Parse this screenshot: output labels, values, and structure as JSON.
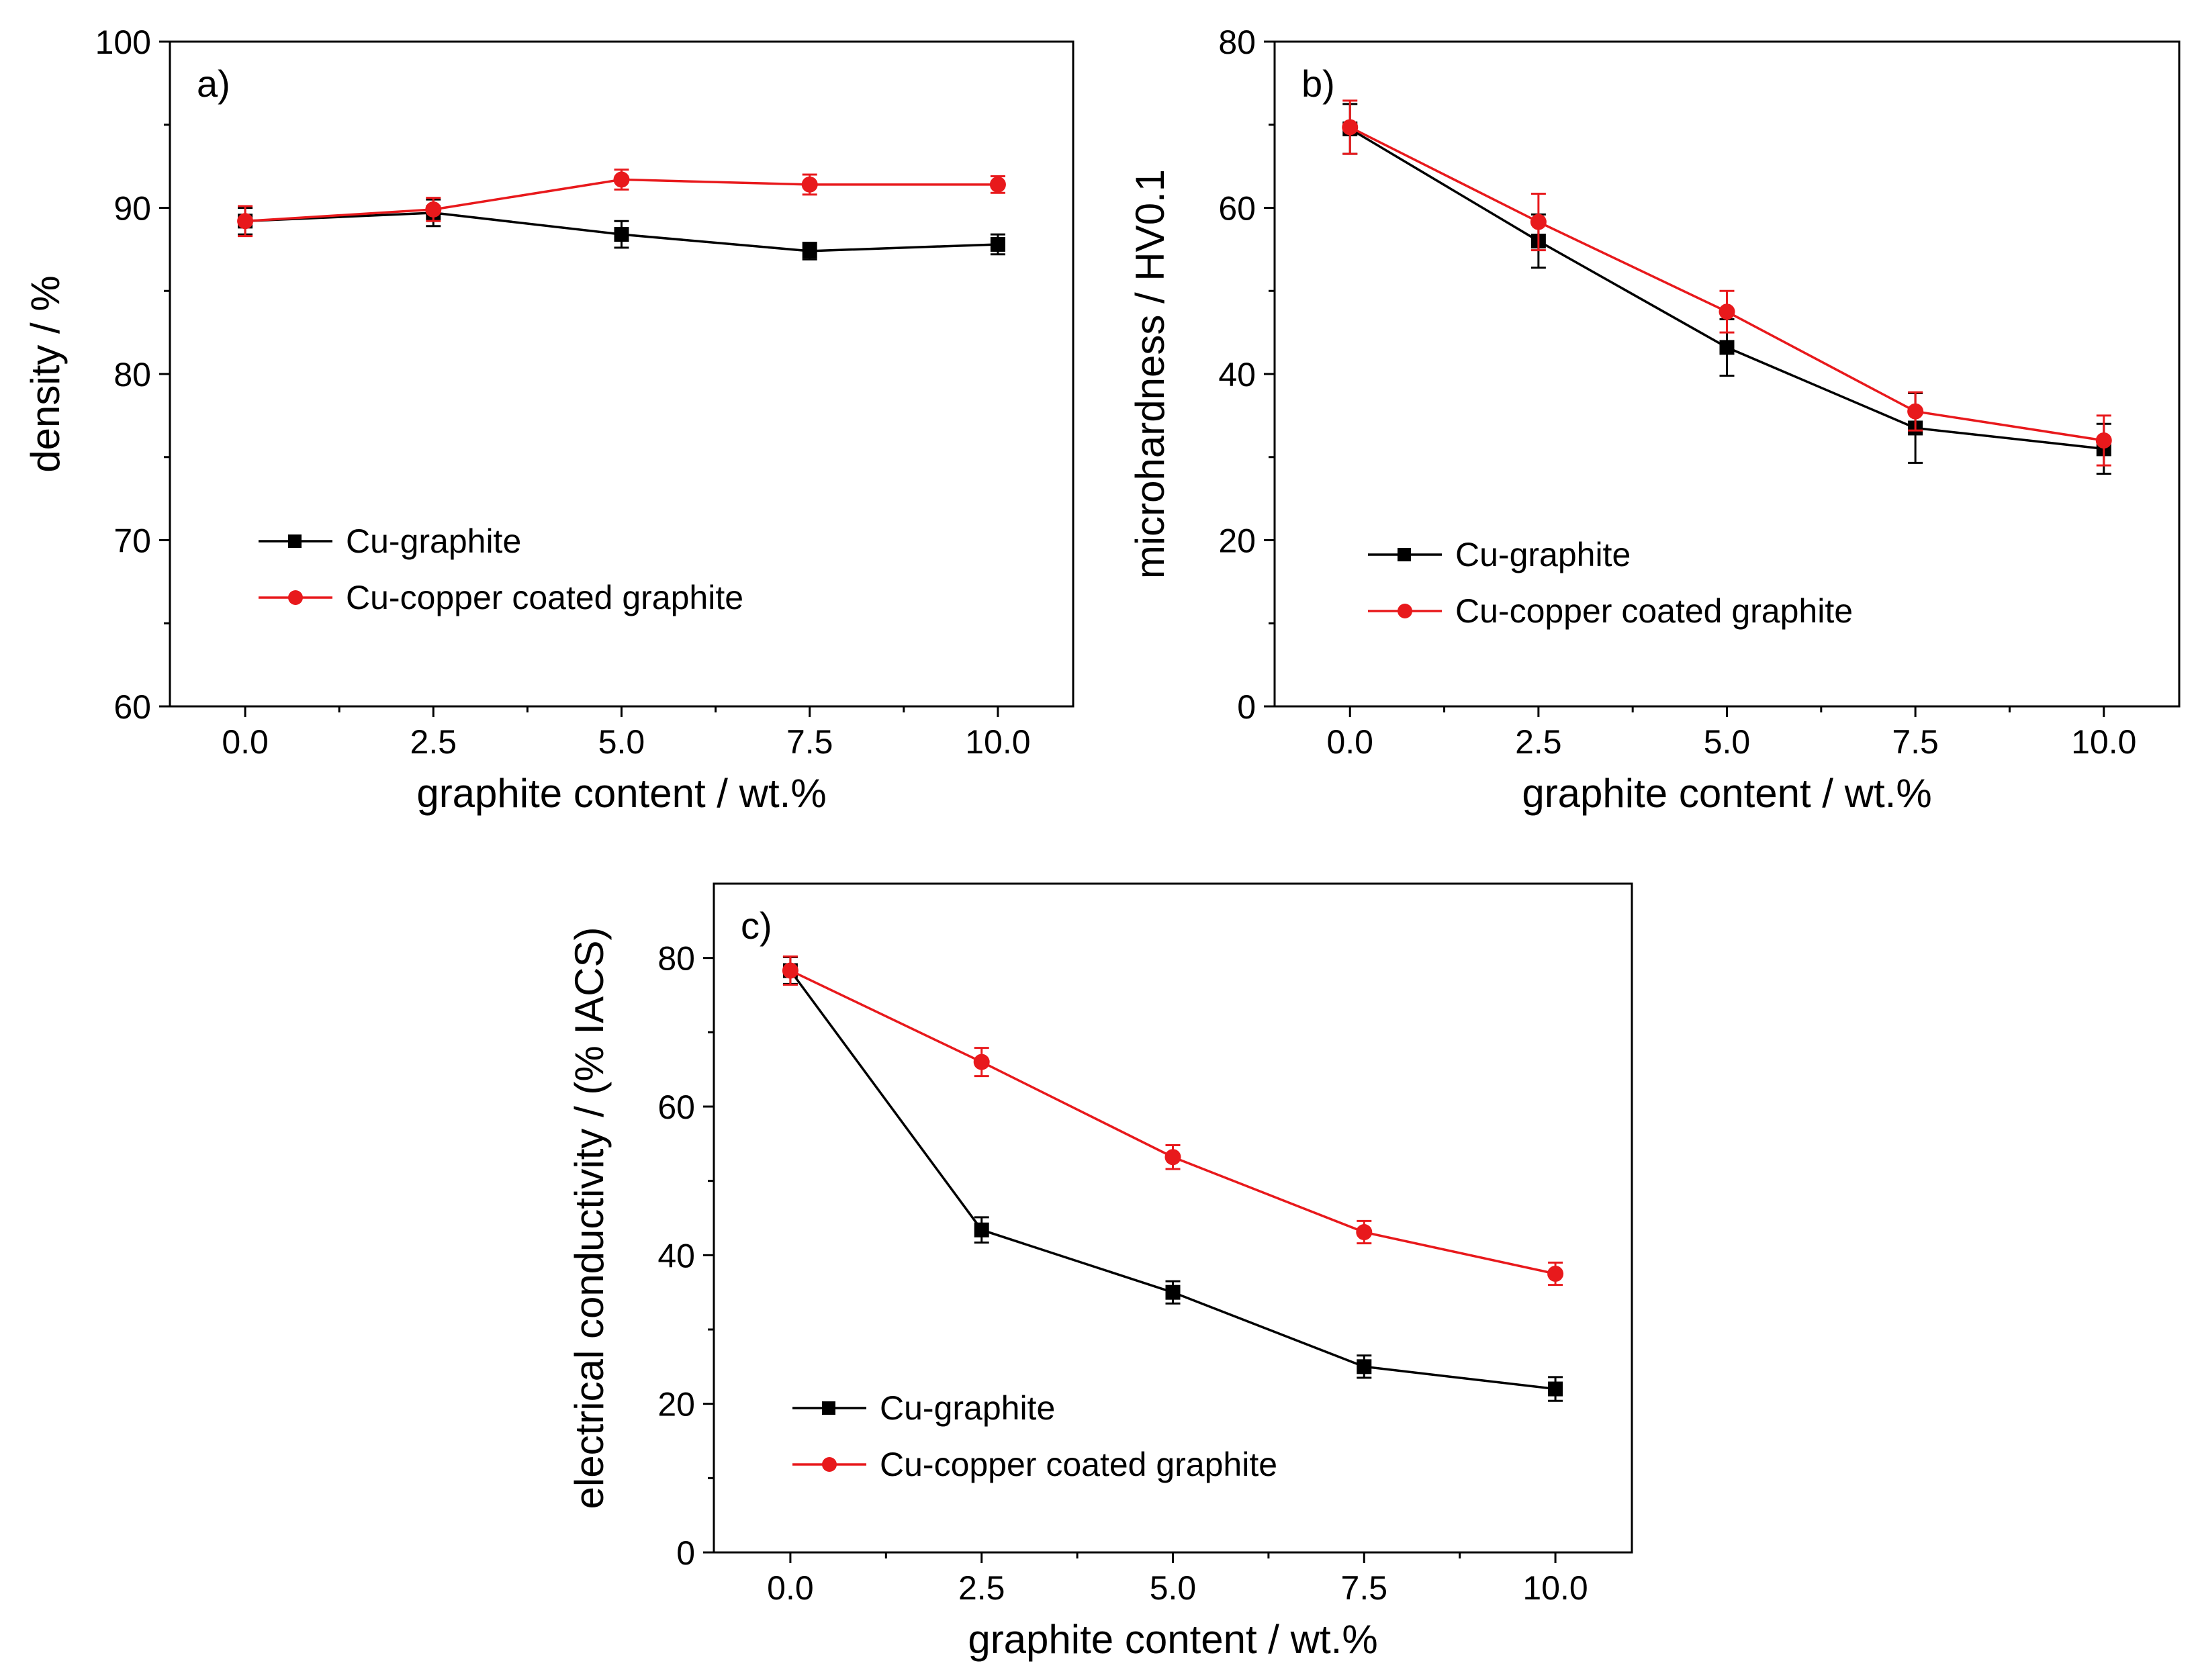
{
  "colors": {
    "cu_graphite": "#000000",
    "cu_coated": "#e8191c"
  },
  "chart_data": [
    {
      "type": "line",
      "panel_label": "a)",
      "xlabel": "graphite content / wt.%",
      "ylabel": "density / %",
      "xlim": [
        -1,
        11
      ],
      "ylim": [
        60,
        100
      ],
      "x_ticks": [
        "0.0",
        "2.5",
        "5.0",
        "7.5",
        "10.0"
      ],
      "x_tick_values": [
        0,
        2.5,
        5,
        7.5,
        10
      ],
      "y_ticks": [
        "60",
        "70",
        "80",
        "90",
        "100"
      ],
      "y_tick_values": [
        60,
        70,
        80,
        90,
        100
      ],
      "legend_position": "lower-left",
      "series": [
        {
          "name": "Cu-graphite",
          "color": "#000000",
          "marker": "square",
          "x": [
            0,
            2.5,
            5,
            7.5,
            10
          ],
          "y": [
            89.2,
            89.7,
            88.4,
            87.4,
            87.8
          ],
          "err": [
            0.8,
            0.8,
            0.8,
            0.5,
            0.6
          ]
        },
        {
          "name": "Cu-copper coated graphite",
          "color": "#e8191c",
          "marker": "circle",
          "x": [
            0,
            2.5,
            5,
            7.5,
            10
          ],
          "y": [
            89.2,
            89.9,
            91.7,
            91.4,
            91.4
          ],
          "err": [
            0.9,
            0.7,
            0.6,
            0.6,
            0.5
          ]
        }
      ]
    },
    {
      "type": "line",
      "panel_label": "b)",
      "xlabel": "graphite content / wt.%",
      "ylabel": "microhardness / HV0.1",
      "xlim": [
        -1,
        11
      ],
      "ylim": [
        0,
        80
      ],
      "x_ticks": [
        "0.0",
        "2.5",
        "5.0",
        "7.5",
        "10.0"
      ],
      "x_tick_values": [
        0,
        2.5,
        5,
        7.5,
        10
      ],
      "y_ticks": [
        "0",
        "20",
        "40",
        "60",
        "80"
      ],
      "y_tick_values": [
        0,
        20,
        40,
        60,
        80
      ],
      "legend_position": "lower-left",
      "series": [
        {
          "name": "Cu-graphite",
          "color": "#000000",
          "marker": "square",
          "x": [
            0,
            2.5,
            5,
            7.5,
            10
          ],
          "y": [
            69.5,
            56,
            43.2,
            33.5,
            31
          ],
          "err": [
            3,
            3.2,
            3.4,
            4.2,
            3
          ]
        },
        {
          "name": "Cu-copper coated graphite",
          "color": "#e8191c",
          "marker": "circle",
          "x": [
            0,
            2.5,
            5,
            7.5,
            10
          ],
          "y": [
            69.7,
            58.3,
            47.5,
            35.5,
            32
          ],
          "err": [
            3.2,
            3.4,
            2.5,
            2.3,
            3
          ]
        }
      ]
    },
    {
      "type": "line",
      "panel_label": "c)",
      "xlabel": "graphite content / wt.%",
      "ylabel": "electrical conductivity / (% IACS)",
      "xlim": [
        -1,
        11
      ],
      "ylim": [
        0,
        90
      ],
      "x_ticks": [
        "0.0",
        "2.5",
        "5.0",
        "7.5",
        "10.0"
      ],
      "x_tick_values": [
        0,
        2.5,
        5,
        7.5,
        10
      ],
      "y_ticks": [
        "0",
        "20",
        "40",
        "60",
        "80"
      ],
      "y_tick_values": [
        0,
        20,
        40,
        60,
        80
      ],
      "legend_position": "lower-left",
      "series": [
        {
          "name": "Cu-graphite",
          "color": "#000000",
          "marker": "square",
          "x": [
            0,
            2.5,
            5,
            7.5,
            10
          ],
          "y": [
            78.3,
            43.4,
            35,
            25,
            22
          ],
          "err": [
            1.8,
            1.7,
            1.5,
            1.5,
            1.6
          ]
        },
        {
          "name": "Cu-copper coated graphite",
          "color": "#e8191c",
          "marker": "circle",
          "x": [
            0,
            2.5,
            5,
            7.5,
            10
          ],
          "y": [
            78.3,
            66,
            53.2,
            43.1,
            37.5
          ],
          "err": [
            1.9,
            1.9,
            1.6,
            1.5,
            1.5
          ]
        }
      ]
    }
  ]
}
